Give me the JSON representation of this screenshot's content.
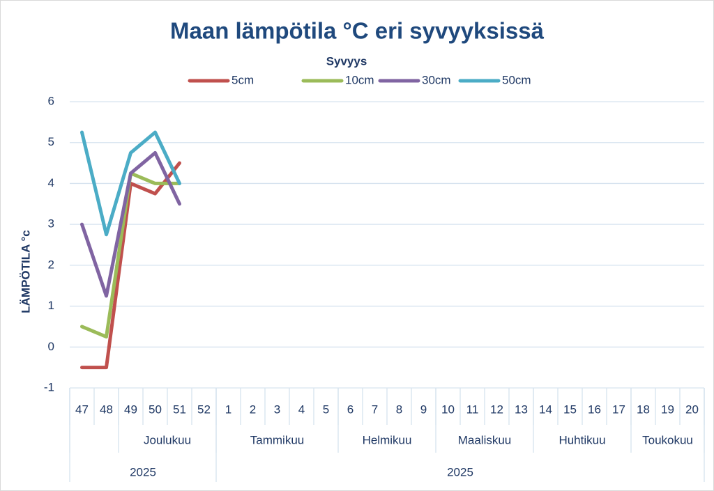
{
  "chart_data": {
    "type": "line",
    "title": "Maan lämpötila °C eri syvyyksissä",
    "legend_title": "Syvyys",
    "y_label": "LÄMPÖTILA °c",
    "categories": [
      47,
      48,
      49,
      50,
      51,
      52,
      1,
      2,
      3,
      4,
      5,
      6,
      7,
      8,
      9,
      10,
      11,
      12,
      13,
      14,
      15,
      16,
      17,
      18,
      19,
      20
    ],
    "month_groups": [
      {
        "label": null,
        "count": 2
      },
      {
        "label": "Joulukuu",
        "count": 4
      },
      {
        "label": "Tammikuu",
        "count": 5
      },
      {
        "label": "Helmikuu",
        "count": 4
      },
      {
        "label": "Maaliskuu",
        "count": 4
      },
      {
        "label": "Huhtikuu",
        "count": 4
      },
      {
        "label": "Toukokuu",
        "count": 3
      }
    ],
    "year_groups": [
      {
        "label": "2025",
        "count": 6
      },
      {
        "label": "2025",
        "count": 20
      }
    ],
    "series": [
      {
        "name": "5cm",
        "color": "#c0504d",
        "values": [
          -0.5,
          -0.5,
          4.0,
          3.75,
          4.5,
          null,
          null,
          null,
          null,
          null,
          null,
          null,
          null,
          null,
          null,
          null,
          null,
          null,
          null,
          null,
          null,
          null,
          null,
          null,
          null,
          null
        ]
      },
      {
        "name": "10cm",
        "color": "#9bbb59",
        "values": [
          0.5,
          0.25,
          4.25,
          4.0,
          4.0,
          null,
          null,
          null,
          null,
          null,
          null,
          null,
          null,
          null,
          null,
          null,
          null,
          null,
          null,
          null,
          null,
          null,
          null,
          null,
          null,
          null
        ]
      },
      {
        "name": "30cm",
        "color": "#8064a2",
        "values": [
          3.0,
          1.25,
          4.25,
          4.75,
          3.5,
          null,
          null,
          null,
          null,
          null,
          null,
          null,
          null,
          null,
          null,
          null,
          null,
          null,
          null,
          null,
          null,
          null,
          null,
          null,
          null,
          null
        ]
      },
      {
        "name": "50cm",
        "color": "#4bacc6",
        "values": [
          5.25,
          2.75,
          4.75,
          5.25,
          4.0,
          null,
          null,
          null,
          null,
          null,
          null,
          null,
          null,
          null,
          null,
          null,
          null,
          null,
          null,
          null,
          null,
          null,
          null,
          null,
          null,
          null
        ]
      }
    ],
    "ylim": [
      -1,
      6
    ],
    "yticks": [
      -1,
      0,
      1,
      2,
      3,
      4,
      5,
      6
    ],
    "grid": true
  }
}
